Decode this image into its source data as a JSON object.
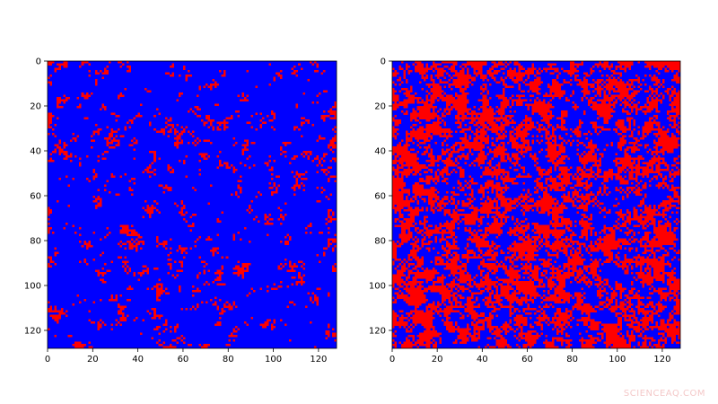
{
  "chart_data": [
    {
      "type": "heatmap",
      "panel": "left",
      "grid_size": 128,
      "colors": {
        "low": "#0000ff",
        "high": "#ff0000"
      },
      "red_fraction": 0.1,
      "xlim": [
        0,
        128
      ],
      "ylim": [
        128,
        0
      ],
      "x_ticks": [
        "0",
        "20",
        "40",
        "60",
        "80",
        "100",
        "120"
      ],
      "y_ticks": [
        "0",
        "20",
        "40",
        "60",
        "80",
        "100",
        "120"
      ],
      "xlabel": "",
      "ylabel": "",
      "title": ""
    },
    {
      "type": "heatmap",
      "panel": "right",
      "grid_size": 128,
      "colors": {
        "low": "#0000ff",
        "high": "#ff0000"
      },
      "red_fraction": 0.5,
      "xlim": [
        0,
        128
      ],
      "ylim": [
        128,
        0
      ],
      "x_ticks": [
        "0",
        "20",
        "40",
        "60",
        "80",
        "100",
        "120"
      ],
      "y_ticks": [
        "0",
        "20",
        "40",
        "60",
        "80",
        "100",
        "120"
      ],
      "xlabel": "",
      "ylabel": "",
      "title": ""
    }
  ],
  "watermark": "SCIENCEAQ.COM"
}
